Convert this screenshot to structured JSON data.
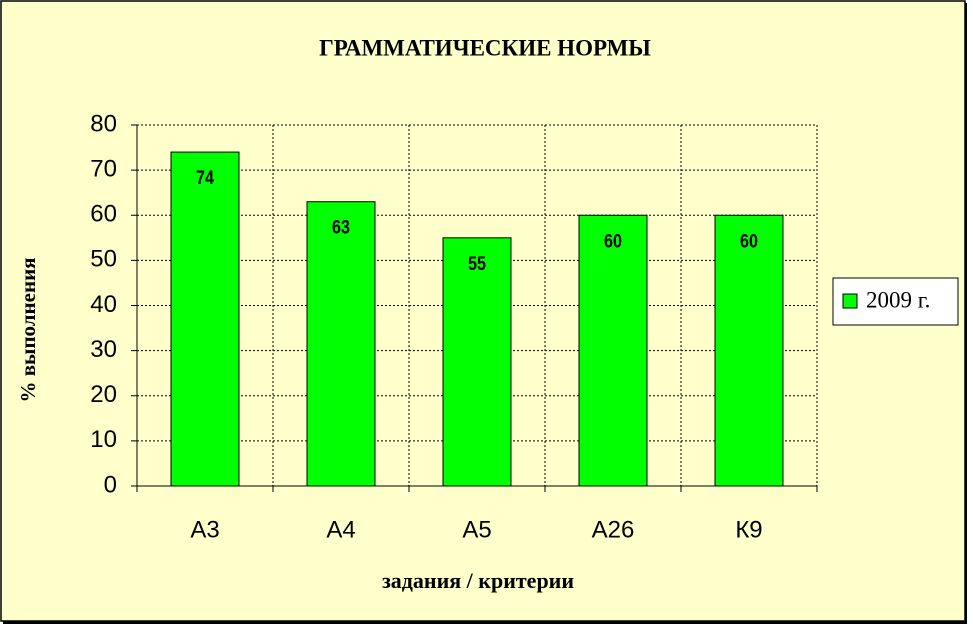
{
  "chart_data": {
    "type": "bar",
    "title": "ГРАММАТИЧЕСКИЕ НОРМЫ",
    "x_label": "задания / критерии",
    "y_label": "% выполнения",
    "categories": [
      "А3",
      "А4",
      "А5",
      "А26",
      "К9"
    ],
    "series": [
      {
        "name": "2009 г.",
        "color": "#00ff00",
        "values": [
          74,
          63,
          55,
          60,
          60
        ]
      }
    ],
    "ylim": [
      0,
      80
    ],
    "yticks": [
      0,
      10,
      20,
      30,
      40,
      50,
      60,
      70,
      80
    ],
    "grid": true,
    "legend": "right"
  }
}
